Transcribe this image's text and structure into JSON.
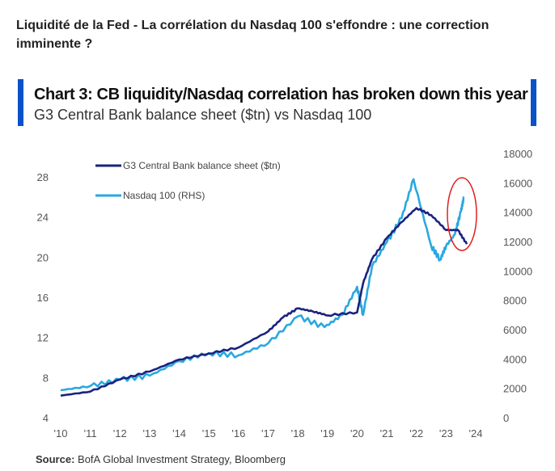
{
  "headline": "Liquidité de la Fed - La corrélation du Nasdaq 100 s'effondre : une correction imminente ?",
  "source_label": "Source:",
  "source_text": "BofA Global Investment Strategy, Bloomberg",
  "chart_data": {
    "type": "line",
    "title": "Chart 3: CB liquidity/Nasdaq correlation has broken down this year",
    "subtitle": "G3 Central Bank balance sheet ($tn) vs Nasdaq 100",
    "x_ticks": [
      "'10",
      "'11",
      "'12",
      "'13",
      "'14",
      "'15",
      "'16",
      "'17",
      "'18",
      "'19",
      "'20",
      "'21",
      "'22",
      "'23",
      "'24"
    ],
    "x_range": [
      2010,
      2024
    ],
    "y_left": {
      "range": [
        4,
        28
      ],
      "ticks": [
        4,
        8,
        12,
        16,
        20,
        24,
        28
      ]
    },
    "y_right": {
      "range": [
        0,
        18000
      ],
      "ticks": [
        0,
        2000,
        4000,
        6000,
        8000,
        10000,
        12000,
        14000,
        16000,
        18000
      ]
    },
    "legend_position": "top-left",
    "colors": {
      "balance_sheet": "#1a237e",
      "nasdaq": "#29a8e0",
      "highlight": "#e02020",
      "accent_bar": "#0a52c8"
    },
    "annotation": "red ellipse highlighting 2023 divergence",
    "series": [
      {
        "name": "G3 Central Bank balance sheet ($tn)",
        "axis": "left",
        "x": [
          2010,
          2011,
          2012,
          2013,
          2014,
          2015,
          2016,
          2017,
          2017.5,
          2018,
          2018.5,
          2019,
          2020,
          2020.2,
          2020.5,
          2021,
          2021.5,
          2022,
          2022.5,
          2023,
          2023.4,
          2023.7
        ],
        "y": [
          6.2,
          6.6,
          7.8,
          8.6,
          9.8,
          10.4,
          11.0,
          12.6,
          14.0,
          14.9,
          14.6,
          14.2,
          14.5,
          17.4,
          19.8,
          21.9,
          23.5,
          24.9,
          24.2,
          22.7,
          22.7,
          21.3
        ]
      },
      {
        "name": "Nasdaq 100 (RHS)",
        "axis": "right",
        "x": [
          2010,
          2011,
          2012,
          2013,
          2014,
          2015,
          2016,
          2017,
          2018,
          2018.9,
          2019.5,
          2020,
          2020.2,
          2020.5,
          2021,
          2021.5,
          2021.9,
          2022.5,
          2022.8,
          2023,
          2023.3,
          2023.5,
          2023.6
        ],
        "y": [
          1870,
          2150,
          2600,
          2860,
          3860,
          4400,
          4250,
          5070,
          6900,
          6170,
          7000,
          8920,
          7000,
          10300,
          11950,
          13600,
          16250,
          11700,
          10750,
          11700,
          12500,
          14050,
          15000
        ]
      }
    ]
  }
}
